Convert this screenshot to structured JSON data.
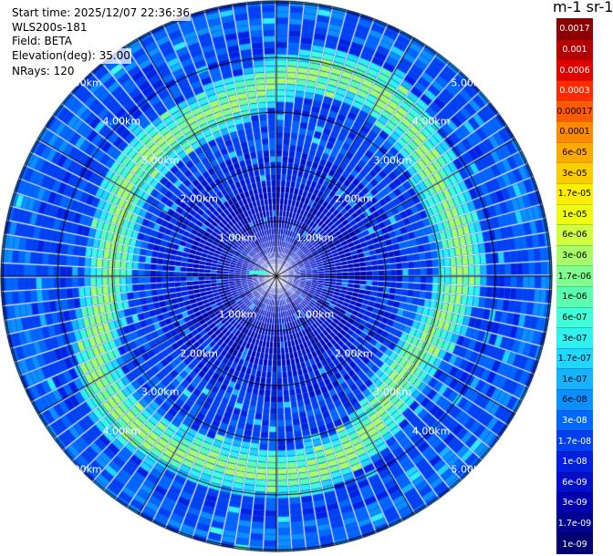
{
  "header": {
    "start_time": "Start time: 2025/12/07 22:36:36",
    "instrument": "WLS200s-181",
    "field": "Field: BETA",
    "elevation": "Elevation(deg): 35.00",
    "nrays": "NRays: 120"
  },
  "colorbar": {
    "unit_title": "m-1 sr-1",
    "labels": [
      "0.0017",
      "0.001",
      "0.0006",
      "0.0003",
      "0.00017",
      "0.0001",
      "6e-05",
      "3e-05",
      "1.7e-05",
      "1e-05",
      "6e-06",
      "3e-06",
      "1.7e-06",
      "1e-06",
      "6e-07",
      "3e-07",
      "1.7e-07",
      "1e-07",
      "6e-08",
      "3e-08",
      "1.7e-08",
      "1e-08",
      "6e-09",
      "3e-09",
      "1.7e-09",
      "1e-09"
    ],
    "colors": [
      "#8b0000",
      "#b40000",
      "#e00000",
      "#ff2a00",
      "#ff5a00",
      "#ff8a00",
      "#ffaa00",
      "#ffcc00",
      "#ffee00",
      "#f0ff10",
      "#d0ff40",
      "#a8ff6a",
      "#80ff90",
      "#5affb0",
      "#40ffd8",
      "#30f0f0",
      "#20d8ff",
      "#14b4ff",
      "#0a90ff",
      "#0068ff",
      "#0040f0",
      "#0020e0",
      "#0010c8",
      "#0000b0",
      "#000090",
      "#000070"
    ]
  },
  "range_rings": [
    {
      "km": 1,
      "label": "1.00km"
    },
    {
      "km": 2,
      "label": "2.00km"
    },
    {
      "km": 3,
      "label": "3.00km"
    },
    {
      "km": 4,
      "label": "4.00km"
    },
    {
      "km": 5,
      "label": "5.00km"
    }
  ],
  "ppi": {
    "nrays": 120,
    "max_range_km": 7.2,
    "aerosol_ring_km": 3.35
  }
}
